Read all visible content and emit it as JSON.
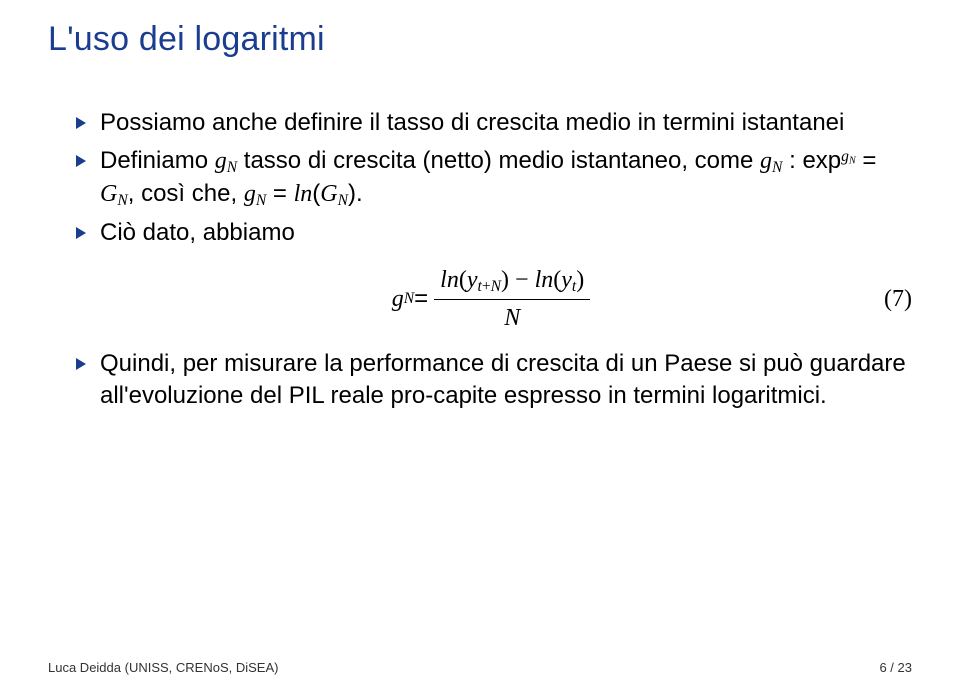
{
  "title": "L'uso dei logaritmi",
  "bullets": {
    "b1_pre": "Possiamo anche definire il tasso di crescita medio in termini istantanei",
    "b2_pre": "Definiamo ",
    "b2_gN": "g",
    "b2_gN_sub": "N",
    "b2_mid1": " tasso di crescita (netto) medio istantaneo, come ",
    "b2_eq1_lhs": "g",
    "b2_eq1_lhs_sub": "N",
    "b2_eq1_colon": " : exp",
    "b2_eq1_exp_sup1": "g",
    "b2_eq1_exp_sup2": "N",
    "b2_eq1_eq": " = ",
    "b2_eq1_G": "G",
    "b2_eq1_G_sub": "N",
    "b2_eq1_comma": ", così che, ",
    "b2_eq2_lhs": "g",
    "b2_eq2_lhs_sub": "N",
    "b2_eq2_eq": " = ",
    "b2_eq2_ln": "ln",
    "b2_eq2_open": "(",
    "b2_eq2_G": "G",
    "b2_eq2_G_sub": "N",
    "b2_eq2_close": ").",
    "b3_pre": "Ciò dato, abbiamo",
    "b4_pre": "Quindi, per misurare la performance di crescita di un Paese si può guardare all'evoluzione del PIL reale pro-capite espresso in termini logaritmici."
  },
  "equation": {
    "lhs_g": "g",
    "lhs_N": "N",
    "eq": " = ",
    "num_ln1": "ln",
    "num_open1": "(",
    "num_y1": "y",
    "num_y1_sub1": "t",
    "num_y1_plus": "+",
    "num_y1_sub2": "N",
    "num_close1": ") − ",
    "num_ln2": "ln",
    "num_open2": "(",
    "num_y2": "y",
    "num_y2_sub": "t",
    "num_close2": ")",
    "den": "N",
    "number": "(7)"
  },
  "footer": {
    "left": "Luca Deidda (UNISS, CRENoS, DiSEA)",
    "right": "6 / 23"
  },
  "colors": {
    "title": "#1a3d8f",
    "bullet": "#1a3d8f",
    "text": "#000000",
    "background": "#ffffff"
  },
  "fonts": {
    "title_size": 34,
    "body_size": 24,
    "footer_size": 13
  }
}
